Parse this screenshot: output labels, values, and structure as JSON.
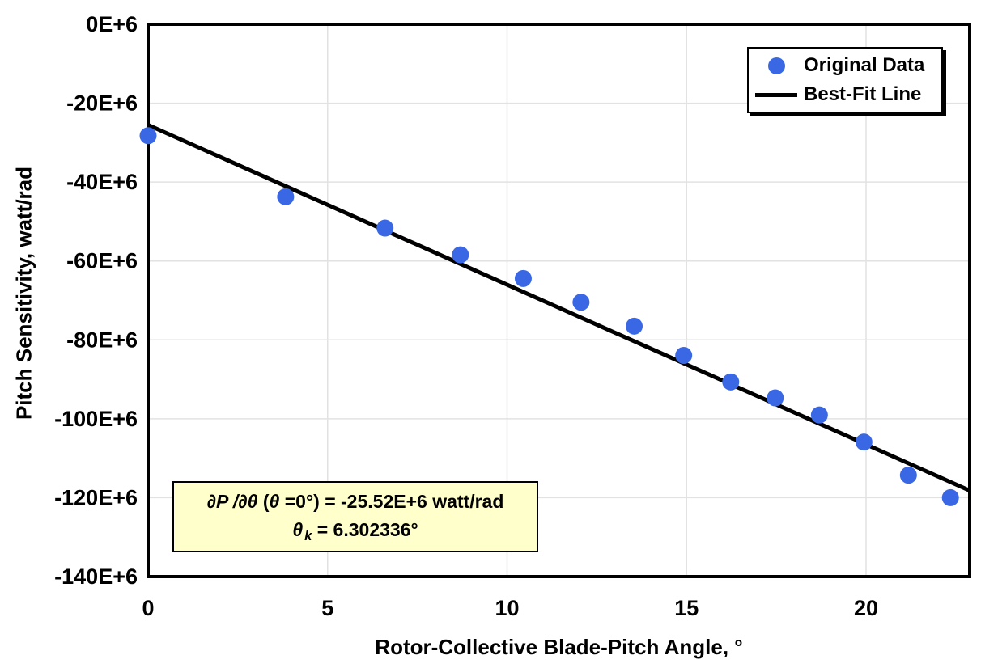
{
  "chart_data": {
    "type": "scatter",
    "title": "",
    "xlabel": "Rotor-Collective Blade-Pitch Angle, °",
    "ylabel": "Pitch Sensitivity, watt/rad",
    "xlim": [
      0,
      23
    ],
    "ylim": [
      -140000000,
      0
    ],
    "grid": true,
    "legend_position": "top-right",
    "x_ticks": [
      {
        "value": 0,
        "label": "0"
      },
      {
        "value": 5,
        "label": "5"
      },
      {
        "value": 10,
        "label": "10"
      },
      {
        "value": 15,
        "label": "15"
      },
      {
        "value": 20,
        "label": "20"
      }
    ],
    "y_ticks": [
      {
        "value": 0,
        "label": "0E+6"
      },
      {
        "value": -20000000,
        "label": "-20E+6"
      },
      {
        "value": -40000000,
        "label": "-40E+6"
      },
      {
        "value": -60000000,
        "label": "-60E+6"
      },
      {
        "value": -80000000,
        "label": "-80E+6"
      },
      {
        "value": -100000000,
        "label": "-100E+6"
      },
      {
        "value": -120000000,
        "label": "-120E+6"
      },
      {
        "value": -140000000,
        "label": "-140E+6"
      }
    ],
    "series": [
      {
        "name": "Original Data",
        "type": "scatter",
        "marker_color": "#3A68E4",
        "points": [
          [
            0.0,
            -28240000
          ],
          [
            3.83,
            -43730000
          ],
          [
            6.6,
            -51660000
          ],
          [
            8.7,
            -58440000
          ],
          [
            10.45,
            -64440000
          ],
          [
            12.06,
            -70460000
          ],
          [
            13.54,
            -76530000
          ],
          [
            14.92,
            -83940000
          ],
          [
            16.23,
            -90670000
          ],
          [
            17.47,
            -94710000
          ],
          [
            18.7,
            -99040000
          ],
          [
            19.94,
            -105900000
          ],
          [
            21.18,
            -114300000
          ],
          [
            22.35,
            -120000000
          ]
        ]
      },
      {
        "name": "Best-Fit Line",
        "type": "line",
        "color": "#000000",
        "fit": {
          "intercept_watt_per_rad": -25520000,
          "theta_k_deg": 6.302336
        }
      }
    ],
    "annotation": {
      "bg_color": "#FFFFCC",
      "line1_segments": [
        {
          "text": "∂P",
          "italic": true
        },
        {
          "text": " /",
          "italic": true
        },
        {
          "text": "∂θ",
          "italic": true
        },
        {
          "text": " (",
          "italic": false
        },
        {
          "text": "θ",
          "italic": true
        },
        {
          "text": " =0°) = -25.52E+6 watt/rad",
          "italic": false
        }
      ],
      "line2_segments": [
        {
          "text": "θ",
          "italic": true
        },
        {
          "text": "k",
          "italic": true,
          "sub": true
        },
        {
          "text": " = 6.302336°",
          "italic": false
        }
      ]
    },
    "colors": {
      "marker": "#3A68E4",
      "fit_line": "#000000",
      "grid": "#E2E2E2",
      "frame": "#000000",
      "background": "#FFFFFF"
    }
  },
  "legend": {
    "items": [
      {
        "label": "Original Data",
        "marker": "dot"
      },
      {
        "label": "Best-Fit Line",
        "marker": "line"
      }
    ]
  }
}
